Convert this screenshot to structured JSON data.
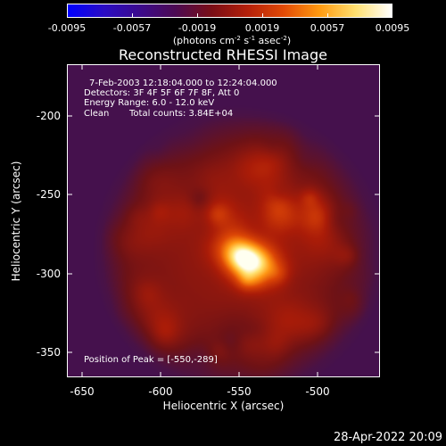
{
  "colorbar": {
    "tick_labels": [
      "-0.0095",
      "-0.0057",
      "-0.0019",
      "0.0019",
      "0.0057",
      "0.0095"
    ],
    "units_prefix": "(photons cm",
    "units_exp1": "-2",
    "units_mid": " s",
    "units_exp2": "-1",
    "units_mid2": " asec",
    "units_exp3": "-2",
    "units_suffix": ")",
    "colors": [
      "#0000ff",
      "#2a0cc4",
      "#3b0a8c",
      "#4c0a52",
      "#7a0e16",
      "#b4200a",
      "#e24a06",
      "#ff9a10",
      "#ffe070",
      "#ffffff"
    ]
  },
  "title": "Reconstructed RHESSI Image",
  "info": {
    "line1": "7-Feb-2003 12:18:04.000 to 12:24:04.000",
    "line2": "Detectors: 3F 4F 5F 6F 7F 8F, Att 0",
    "line3": "Energy Range: 6.0 - 12.0 keV",
    "line4_a": "Clean",
    "line4_b": "Total counts: 3.84E+04",
    "peak": "Position of Peak = [-550,-289]"
  },
  "axes": {
    "xlabel": "Heliocentric X (arcsec)",
    "ylabel": "Heliocentric Y (arcsec)",
    "x_ticks": [
      "-650",
      "-600",
      "-550",
      "-500"
    ],
    "y_ticks": [
      "-200",
      "-250",
      "-300",
      "-350"
    ]
  },
  "image": {
    "peak_x": -550,
    "peak_y": -289,
    "x_range": [
      -664,
      -466
    ],
    "y_range": [
      -364,
      -166
    ]
  },
  "timestamp": "28-Apr-2022 20:09"
}
